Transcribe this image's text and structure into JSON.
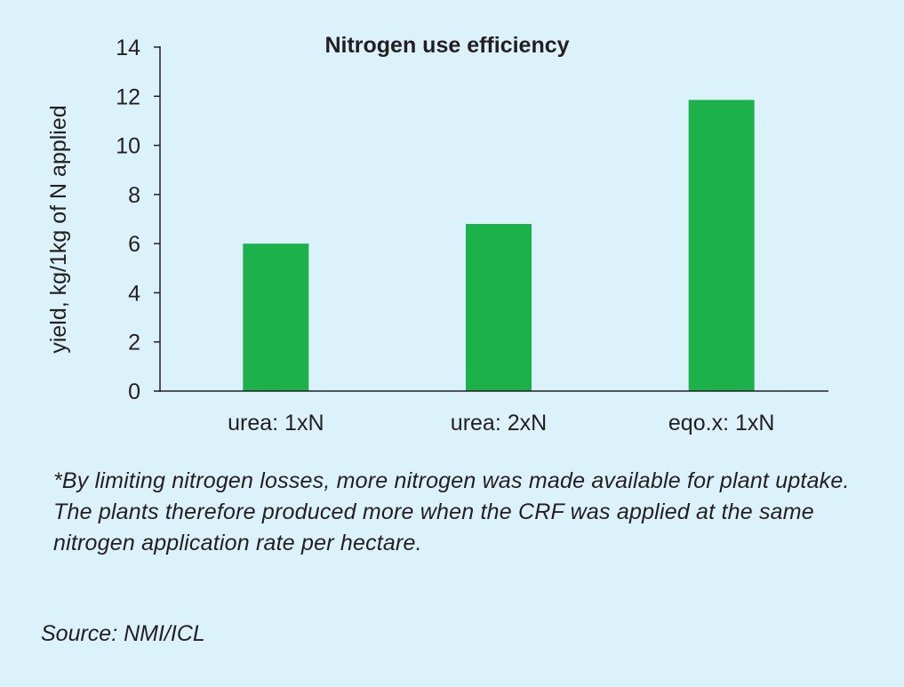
{
  "chart_data": {
    "type": "bar",
    "title": "Nitrogen use efficiency",
    "ylabel": "yield, kg/1kg of N applied",
    "xlabel": "",
    "categories": [
      "urea: 1xN",
      "urea: 2xN",
      "eqo.x: 1xN"
    ],
    "values": [
      6.0,
      6.8,
      11.85
    ],
    "ylim": [
      0,
      14
    ],
    "yticks": [
      "0",
      "2",
      "4",
      "6",
      "8",
      "10",
      "12",
      "14"
    ],
    "bar_color": "#1db14b",
    "grid": false,
    "legend": "none"
  },
  "note": "*By limiting nitrogen losses, more nitrogen was made available for plant uptake. The plants therefore produced more when the CRF was applied at the same nitrogen application rate per hectare.",
  "source": "Source: NMI/ICL",
  "colors": {
    "background": "#dcf2fb",
    "text": "#231f20",
    "bar": "#1db14b"
  }
}
